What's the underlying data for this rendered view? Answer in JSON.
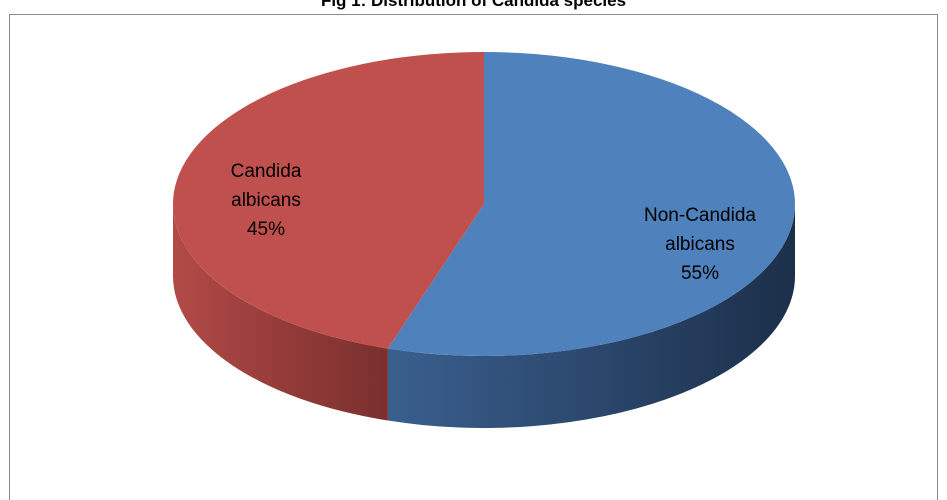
{
  "chart_data": {
    "type": "pie",
    "title": "Fig 1: Distribution of Candida species",
    "style": "3d",
    "slices": [
      {
        "name": "Non-Candida albicans",
        "label_lines": [
          "Non-Candida",
          "albicans"
        ],
        "percent_label": "55%",
        "value": 55,
        "color": "#4f81bd"
      },
      {
        "name": "Candida albicans",
        "label_lines": [
          "Candida",
          "albicans"
        ],
        "percent_label": "45%",
        "value": 45,
        "color": "#c0504d"
      }
    ]
  }
}
